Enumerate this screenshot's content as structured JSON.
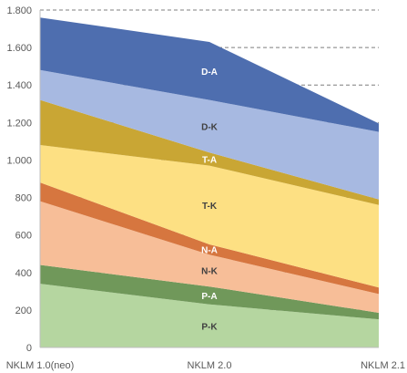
{
  "chart_data": {
    "type": "area",
    "stacked": true,
    "categories": [
      "NKLM 1.0(neo)",
      "NKLM 2.0",
      "NKLM 2.1"
    ],
    "ylim": [
      0,
      1800
    ],
    "yticks": [
      0,
      200,
      400,
      600,
      800,
      1000,
      1200,
      1400,
      1600,
      1800
    ],
    "ytick_labels": [
      "0",
      "200",
      "400",
      "600",
      "800",
      "1.000",
      "1.200",
      "1.400",
      "1.600",
      "1.800"
    ],
    "grid": "horizontal dashed",
    "series": [
      {
        "name": "P-K",
        "values": [
          340,
          230,
          150
        ],
        "color": "#b5d6a0"
      },
      {
        "name": "P-A",
        "values": [
          100,
          95,
          35
        ],
        "color": "#70985a"
      },
      {
        "name": "N-K",
        "values": [
          340,
          170,
          100
        ],
        "color": "#f7be98"
      },
      {
        "name": "N-A",
        "values": [
          100,
          55,
          35
        ],
        "color": "#d6763f"
      },
      {
        "name": "T-K",
        "values": [
          200,
          420,
          440
        ],
        "color": "#fde083"
      },
      {
        "name": "T-A",
        "values": [
          240,
          70,
          30
        ],
        "color": "#c9a634"
      },
      {
        "name": "D-K",
        "values": [
          160,
          280,
          360
        ],
        "color": "#a7b9e1"
      },
      {
        "name": "D-A",
        "values": [
          280,
          310,
          45
        ],
        "color": "#4e6eaf"
      }
    ]
  }
}
